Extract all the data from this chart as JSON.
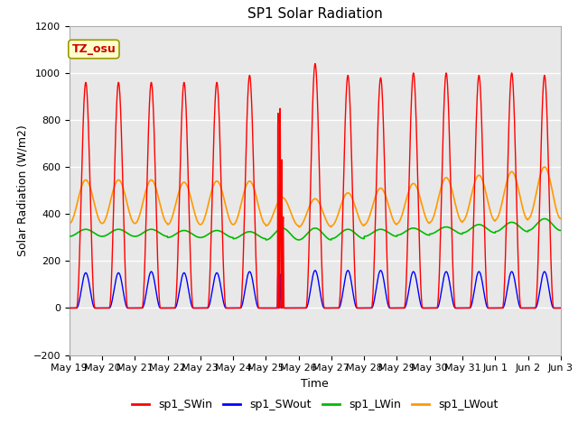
{
  "title": "SP1 Solar Radiation",
  "xlabel": "Time",
  "ylabel": "Solar Radiation (W/m2)",
  "ylim": [
    -200,
    1200
  ],
  "yticks": [
    -200,
    0,
    200,
    400,
    600,
    800,
    1000,
    1200
  ],
  "n_days": 15,
  "colors": {
    "sp1_SWin": "#ff0000",
    "sp1_SWout": "#0000ff",
    "sp1_LWin": "#00bb00",
    "sp1_LWout": "#ff9900"
  },
  "legend_labels": [
    "sp1_SWin",
    "sp1_SWout",
    "sp1_LWin",
    "sp1_LWout"
  ],
  "annotation_text": "TZ_osu",
  "annotation_fg": "#cc0000",
  "annotation_bg": "#ffffcc",
  "annotation_border": "#999900",
  "background_color": "#e8e8e8",
  "grid_color": "#ffffff",
  "fig_bg": "#ffffff",
  "sw_in_peaks": [
    960,
    960,
    960,
    960,
    960,
    990,
    860,
    1040,
    990,
    980,
    1000,
    1000,
    990,
    1000,
    990
  ],
  "sw_out_peaks": [
    150,
    150,
    155,
    150,
    150,
    155,
    150,
    160,
    160,
    160,
    155,
    155,
    155,
    155,
    155
  ],
  "lw_in_base": [
    305,
    305,
    305,
    300,
    300,
    295,
    290,
    290,
    295,
    305,
    310,
    315,
    320,
    325,
    330
  ],
  "lw_in_amp": [
    30,
    30,
    30,
    30,
    30,
    30,
    50,
    50,
    40,
    30,
    30,
    30,
    35,
    40,
    50
  ],
  "lw_out_night": [
    360,
    360,
    360,
    355,
    355,
    355,
    350,
    345,
    350,
    355,
    360,
    365,
    370,
    375,
    380
  ],
  "lw_out_peak": [
    545,
    545,
    545,
    535,
    540,
    540,
    470,
    465,
    490,
    510,
    530,
    555,
    565,
    580,
    600
  ]
}
